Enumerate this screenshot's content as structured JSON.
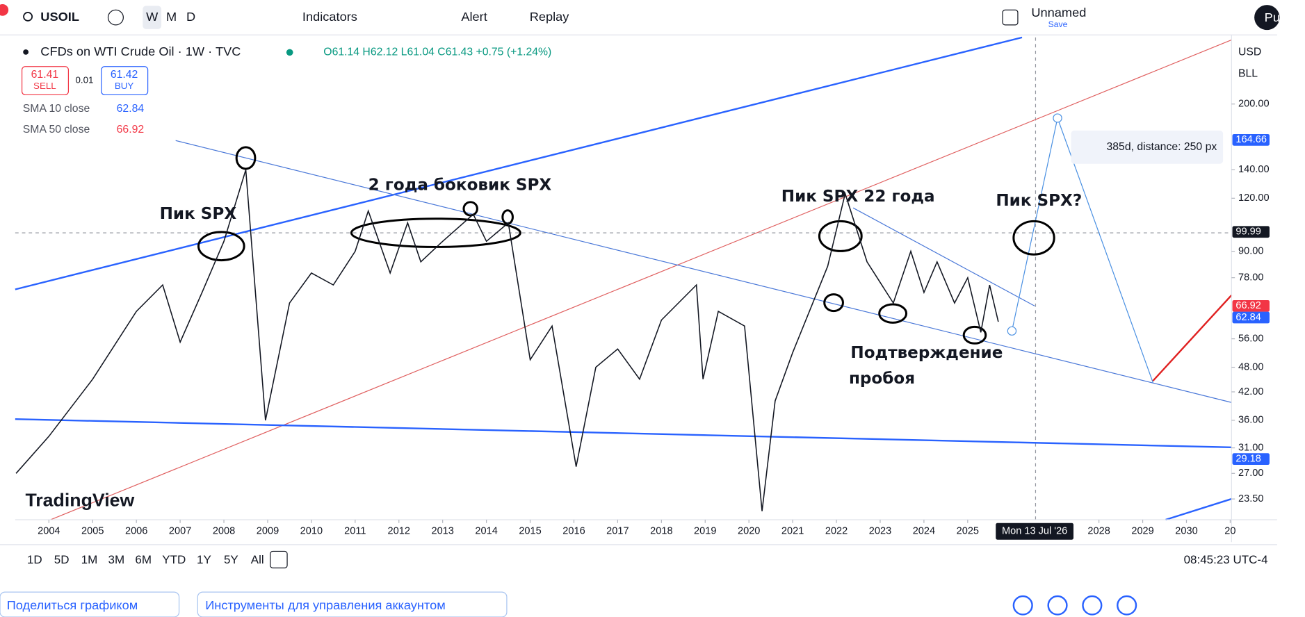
{
  "toolbar": {
    "symbol": "USOIL",
    "intervals": [
      "W",
      "M",
      "D"
    ],
    "indicators": "Indicators",
    "alert": "Alert",
    "replay": "Replay",
    "layout_name": "Unnamed",
    "save": "Save",
    "user": "Pu"
  },
  "legend": {
    "title": "CFDs on WTI Crude Oil · 1W · TVC",
    "ohlc": "O61.14 H62.12 L61.04 C61.43 +0.75 (+1.24%)",
    "sell_price": "61.41",
    "sell": "SELL",
    "spread": "0.01",
    "buy_price": "61.42",
    "buy": "BUY",
    "sma10_name": "SMA 10 close",
    "sma10_value": "62.84",
    "sma50_name": "SMA 50 close",
    "sma50_value": "66.92"
  },
  "scale": {
    "currency": "USD",
    "unit": "BLL"
  },
  "measure": "385d, distance: 250 px",
  "watermark": "TradingView",
  "annotations": [
    "Пик SPX",
    "2 года боковик SPX",
    "Пик SPX 22 года",
    "Пик SPX?",
    "Подтверждение",
    "пробоя"
  ],
  "chart_data": {
    "type": "line",
    "log_scale": true,
    "color": "#131722",
    "x": [
      2003.25,
      2004,
      2005,
      2006,
      2006.6,
      2007,
      2007.5,
      2008,
      2008.5,
      2008.95,
      2009.5,
      2010,
      2010.5,
      2011,
      2011.3,
      2011.8,
      2012.2,
      2012.5,
      2013,
      2013.7,
      2014,
      2014.5,
      2015,
      2015.5,
      2016.05,
      2016.5,
      2017,
      2017.5,
      2018,
      2018.8,
      2018.95,
      2019.3,
      2019.9,
      2020.3,
      2020.6,
      2021,
      2021.8,
      2022.2,
      2022.7,
      2023.3,
      2023.7,
      2024,
      2024.3,
      2024.7,
      2025,
      2025.3,
      2025.5,
      2025.7
    ],
    "values": [
      27,
      33,
      45,
      65,
      75,
      55,
      72,
      95,
      140,
      36,
      68,
      80,
      75,
      90,
      112,
      80,
      105,
      85,
      95,
      110,
      95,
      105,
      50,
      60,
      28,
      48,
      53,
      45,
      62,
      75,
      45,
      65,
      60,
      22,
      40,
      52,
      83,
      123,
      85,
      68,
      90,
      72,
      85,
      68,
      78,
      58,
      75,
      61.43
    ],
    "xlim": [
      2003.23,
      2031.03
    ],
    "ylim": [
      21,
      287
    ],
    "xticks": [
      2004,
      2005,
      2006,
      2007,
      2008,
      2009,
      2010,
      2011,
      2012,
      2013,
      2014,
      2015,
      2016,
      2017,
      2018,
      2019,
      2020,
      2021,
      2022,
      2023,
      2024,
      2025,
      2028,
      2029,
      2030,
      {
        "value": 2031,
        "label": "20"
      }
    ],
    "yticks": [
      {
        "value": 23.5,
        "label": "23.50"
      },
      {
        "value": 27,
        "label": "27.00"
      },
      {
        "value": 31,
        "label": "31.00"
      },
      {
        "value": 36,
        "label": "36.00"
      },
      {
        "value": 42,
        "label": "42.00"
      },
      {
        "value": 48,
        "label": "48.00"
      },
      {
        "value": 56,
        "label": "56.00"
      },
      {
        "value": 78,
        "label": "78.00"
      },
      {
        "value": 90,
        "label": "90.00"
      },
      {
        "value": 120,
        "label": "120.00"
      },
      {
        "value": 140,
        "label": "140.00"
      },
      {
        "value": 200,
        "label": "200.00"
      }
    ],
    "price_labels": [
      {
        "value": 164.66,
        "color": "#2962ff"
      },
      {
        "value": 99.99,
        "color": "#131722"
      },
      {
        "value": 66.92,
        "color": "#f23645"
      },
      {
        "value": 62.84,
        "color": "#2962ff"
      },
      {
        "value": 29.18,
        "color": "#2962ff"
      }
    ],
    "cursor_x": {
      "value": 2026.53,
      "label": "Mon 13 Jul '26"
    }
  },
  "ranges": [
    "1D",
    "5D",
    "1M",
    "3M",
    "6M",
    "YTD",
    "1Y",
    "5Y",
    "All"
  ],
  "clock": "08:45:23 UTC-4",
  "footer": {
    "share": "Поделиться графиком",
    "tools": "Инструменты для управления аккаунтом"
  }
}
